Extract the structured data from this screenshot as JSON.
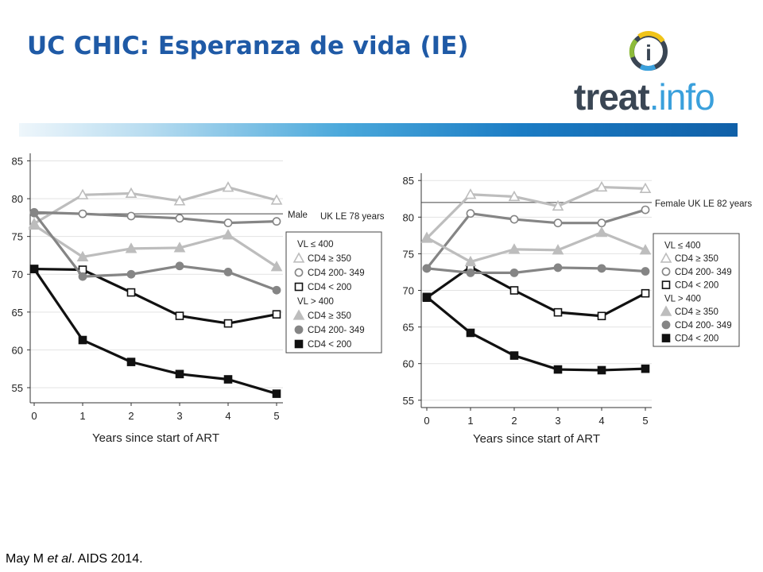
{
  "header": {
    "title": "UC CHIC: Esperanza de vida (IE)",
    "logo": {
      "name": "treat.info",
      "part1": "treat",
      "part2": ".info",
      "symbol": "i"
    }
  },
  "colors": {
    "title": "#1f5aa6",
    "light_grey": "#bdbdbd",
    "mid_grey": "#858585",
    "black": "#111111",
    "logo_dark": "#3a4654",
    "logo_blue": "#3aa0dc",
    "logo_green": "#8dbb3a",
    "logo_yellow": "#f0c419"
  },
  "chart_data": [
    {
      "type": "line",
      "title": "",
      "reference_label": "UK LE 78 years",
      "side_label": "Male",
      "reference_value": 78,
      "xlabel": "Years since start of ART",
      "ylabel": "",
      "x": [
        0,
        1,
        2,
        3,
        4,
        5
      ],
      "xticks": [
        "0",
        "1",
        "2",
        "3",
        "4",
        "5"
      ],
      "ylim": [
        53,
        86
      ],
      "yticks": [
        55,
        60,
        65,
        70,
        75,
        80,
        85
      ],
      "grid": true,
      "legend_position": "right",
      "legend": [
        {
          "heading": "VL ≤ 400"
        },
        {
          "label": "CD4 ≥ 350",
          "series": 0
        },
        {
          "label": "CD4 200- 349",
          "series": 1
        },
        {
          "label": "CD4 < 200",
          "series": 2
        },
        {
          "heading": "VL > 400"
        },
        {
          "label": "CD4 ≥ 350",
          "series": 3
        },
        {
          "label": "CD4 200- 349",
          "series": 4
        },
        {
          "label": "CD4 < 200",
          "series": 5
        }
      ],
      "series": [
        {
          "group": "VL ≤ 400",
          "name": "CD4 ≥ 350",
          "marker": "triangle-open",
          "color": "#bdbdbd",
          "values": [
            76.7,
            80.5,
            80.7,
            79.7,
            81.5,
            79.8
          ]
        },
        {
          "group": "VL ≤ 400",
          "name": "CD4 200- 349",
          "marker": "circle-open",
          "color": "#858585",
          "values": [
            78.2,
            78.0,
            77.7,
            77.4,
            76.8,
            77.0
          ]
        },
        {
          "group": "VL ≤ 400",
          "name": "CD4 < 200",
          "marker": "square-open",
          "color": "#111111",
          "values": [
            70.7,
            70.6,
            67.6,
            64.5,
            63.5,
            64.7
          ]
        },
        {
          "group": "VL > 400",
          "name": "CD4 ≥ 350",
          "marker": "triangle-filled",
          "color": "#bdbdbd",
          "values": [
            76.5,
            72.3,
            73.4,
            73.5,
            75.2,
            71.0
          ]
        },
        {
          "group": "VL > 400",
          "name": "CD4 200- 349",
          "marker": "circle-filled",
          "color": "#858585",
          "values": [
            78.1,
            69.7,
            70.0,
            71.1,
            70.3,
            67.9
          ]
        },
        {
          "group": "VL > 400",
          "name": "CD4 < 200",
          "marker": "square-filled",
          "color": "#111111",
          "values": [
            70.7,
            61.3,
            58.4,
            56.8,
            56.1,
            54.2
          ]
        }
      ]
    },
    {
      "type": "line",
      "title": "",
      "reference_label": "Female UK LE 82 years",
      "reference_value": 82,
      "xlabel": "Years since start of ART",
      "ylabel": "",
      "x": [
        0,
        1,
        2,
        3,
        4,
        5
      ],
      "xticks": [
        "0",
        "1",
        "2",
        "3",
        "4",
        "5"
      ],
      "ylim": [
        54,
        86
      ],
      "yticks": [
        55,
        60,
        65,
        70,
        75,
        80,
        85
      ],
      "grid": true,
      "legend_position": "right",
      "legend": [
        {
          "heading": "VL ≤ 400"
        },
        {
          "label": "CD4 ≥ 350",
          "series": 0
        },
        {
          "label": "CD4 200- 349",
          "series": 1
        },
        {
          "label": "CD4 < 200",
          "series": 2
        },
        {
          "heading": "VL > 400"
        },
        {
          "label": "CD4 ≥ 350",
          "series": 3
        },
        {
          "label": "CD4 200- 349",
          "series": 4
        },
        {
          "label": "CD4 < 200",
          "series": 5
        }
      ],
      "series": [
        {
          "group": "VL ≤ 400",
          "name": "CD4 ≥ 350",
          "marker": "triangle-open",
          "color": "#bdbdbd",
          "values": [
            77.1,
            83.1,
            82.8,
            81.5,
            84.1,
            83.9
          ]
        },
        {
          "group": "VL ≤ 400",
          "name": "CD4 200- 349",
          "marker": "circle-open",
          "color": "#858585",
          "values": [
            73.0,
            80.5,
            79.7,
            79.2,
            79.2,
            81.0
          ]
        },
        {
          "group": "VL ≤ 400",
          "name": "CD4 < 200",
          "marker": "square-open",
          "color": "#111111",
          "values": [
            69.0,
            73.2,
            70.0,
            67.0,
            66.5,
            69.6
          ]
        },
        {
          "group": "VL > 400",
          "name": "CD4 ≥ 350",
          "marker": "triangle-filled",
          "color": "#bdbdbd",
          "values": [
            77.2,
            73.9,
            75.6,
            75.5,
            77.9,
            75.5
          ]
        },
        {
          "group": "VL > 400",
          "name": "CD4 200- 349",
          "marker": "circle-filled",
          "color": "#858585",
          "values": [
            73.0,
            72.4,
            72.4,
            73.1,
            73.0,
            72.6
          ]
        },
        {
          "group": "VL > 400",
          "name": "CD4 < 200",
          "marker": "square-filled",
          "color": "#111111",
          "values": [
            69.1,
            64.2,
            61.1,
            59.2,
            59.1,
            59.3
          ]
        }
      ]
    }
  ],
  "citation": {
    "authors": "May M",
    "etal": "et al",
    "rest": ". AIDS 2014."
  }
}
